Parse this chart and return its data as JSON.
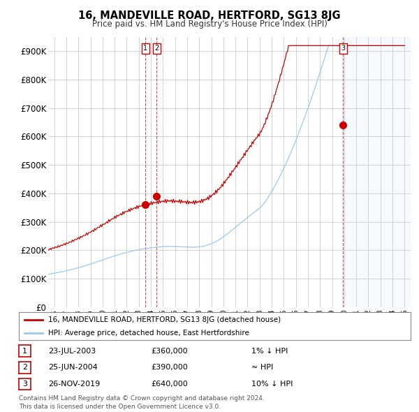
{
  "title": "16, MANDEVILLE ROAD, HERTFORD, SG13 8JG",
  "subtitle": "Price paid vs. HM Land Registry's House Price Index (HPI)",
  "ylim": [
    0,
    950000
  ],
  "yticks": [
    0,
    100000,
    200000,
    300000,
    400000,
    500000,
    600000,
    700000,
    800000,
    900000
  ],
  "ytick_labels": [
    "£0",
    "£100K",
    "£200K",
    "£300K",
    "£400K",
    "£500K",
    "£600K",
    "£700K",
    "£800K",
    "£900K"
  ],
  "plot_bg_color": "#ffffff",
  "grid_color": "#cccccc",
  "line_color_hpi": "#9ec8e8",
  "line_color_price": "#cc0000",
  "shade_color": "#ddeeff",
  "transaction_markers": [
    {
      "date_num": 2003.55,
      "price": 360000,
      "label": "1"
    },
    {
      "date_num": 2004.48,
      "price": 390000,
      "label": "2"
    },
    {
      "date_num": 2019.9,
      "price": 640000,
      "label": "3"
    }
  ],
  "legend_entries": [
    "16, MANDEVILLE ROAD, HERTFORD, SG13 8JG (detached house)",
    "HPI: Average price, detached house, East Hertfordshire"
  ],
  "table_rows": [
    {
      "num": "1",
      "date": "23-JUL-2003",
      "price": "£360,000",
      "hpi": "1% ↓ HPI"
    },
    {
      "num": "2",
      "date": "25-JUN-2004",
      "price": "£390,000",
      "hpi": "≈ HPI"
    },
    {
      "num": "3",
      "date": "26-NOV-2019",
      "price": "£640,000",
      "hpi": "10% ↓ HPI"
    }
  ],
  "footer": "Contains HM Land Registry data © Crown copyright and database right 2024.\nThis data is licensed under the Open Government Licence v3.0.",
  "marker_line_color": "#cc0000",
  "marker_box_color": "#cc0000",
  "shade_start": 2019.9,
  "xlim_start": 1995.5,
  "xlim_end": 2025.5
}
